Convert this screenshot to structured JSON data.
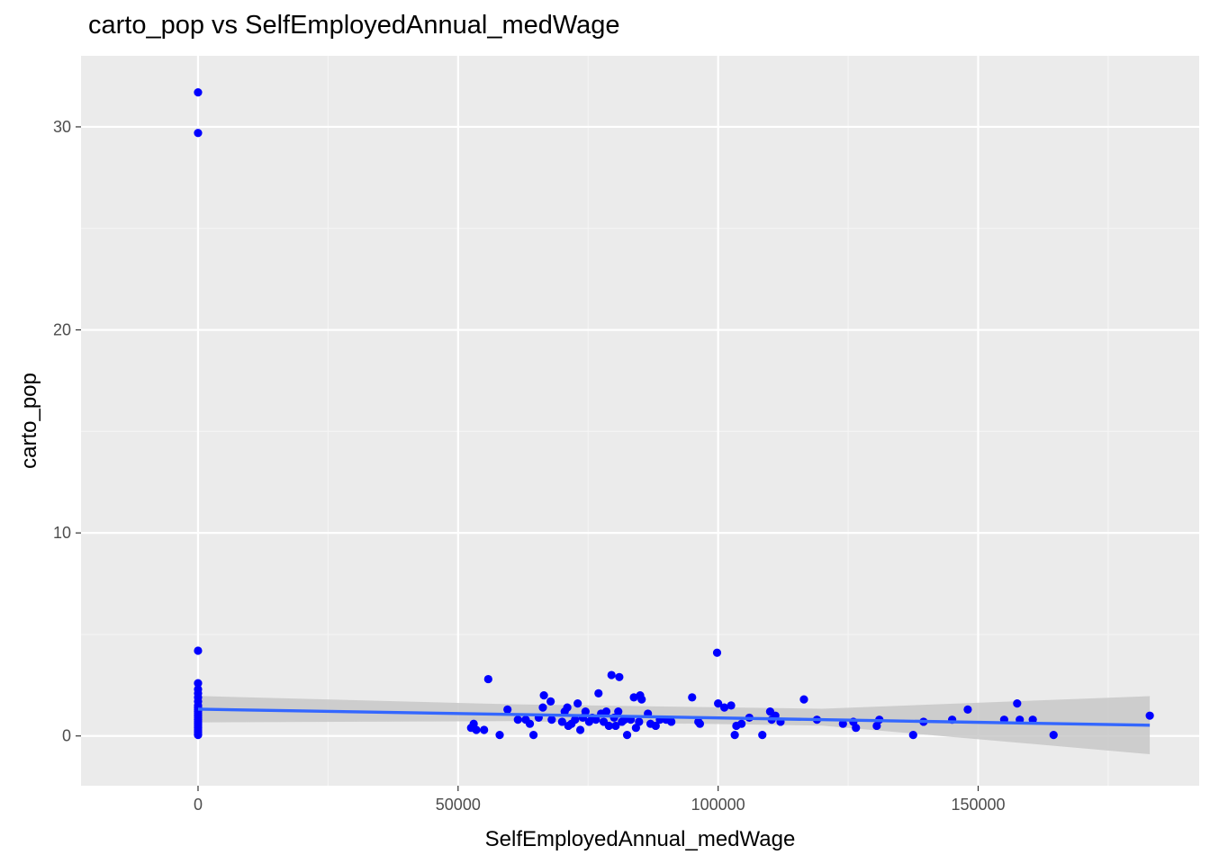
{
  "chart_data": {
    "type": "scatter",
    "title": "carto_pop vs SelfEmployedAnnual_medWage",
    "xlabel": "SelfEmployedAnnual_medWage",
    "ylabel": "carto_pop",
    "xlim": [
      -22500,
      192500
    ],
    "ylim": [
      -2.45,
      33.5
    ],
    "x_ticks": [
      0,
      50000,
      100000,
      150000
    ],
    "x_tick_labels": [
      "0",
      "50000",
      "100000",
      "150000"
    ],
    "y_ticks": [
      0,
      10,
      20,
      30
    ],
    "y_tick_labels": [
      "0",
      "10",
      "20",
      "30"
    ],
    "grid": true,
    "background": "#ebebeb",
    "point_color": "#0000ff",
    "smooth_color": "#3366ff",
    "ribbon_color": "#c8c8c8",
    "points": [
      [
        0,
        31.7
      ],
      [
        0,
        29.7
      ],
      [
        0,
        4.2
      ],
      [
        0,
        2.6
      ],
      [
        0,
        2.3
      ],
      [
        0,
        2.1
      ],
      [
        0,
        1.9
      ],
      [
        0,
        1.7
      ],
      [
        0,
        1.5
      ],
      [
        0,
        1.4
      ],
      [
        0,
        1.3
      ],
      [
        0,
        1.2
      ],
      [
        0,
        1.1
      ],
      [
        0,
        1.0
      ],
      [
        0,
        0.9
      ],
      [
        0,
        0.8
      ],
      [
        0,
        0.7
      ],
      [
        0,
        0.6
      ],
      [
        0,
        0.5
      ],
      [
        0,
        0.4
      ],
      [
        0,
        0.3
      ],
      [
        0,
        0.2
      ],
      [
        0,
        0.1
      ],
      [
        0,
        0.05
      ],
      [
        52500,
        0.4
      ],
      [
        53000,
        0.6
      ],
      [
        53500,
        0.3
      ],
      [
        55000,
        0.3
      ],
      [
        55800,
        2.8
      ],
      [
        58000,
        0.05
      ],
      [
        59500,
        1.3
      ],
      [
        61500,
        0.8
      ],
      [
        63000,
        0.8
      ],
      [
        63800,
        0.6
      ],
      [
        64500,
        0.05
      ],
      [
        65500,
        0.9
      ],
      [
        66300,
        1.4
      ],
      [
        66500,
        2.0
      ],
      [
        67800,
        1.7
      ],
      [
        68000,
        0.8
      ],
      [
        70000,
        0.7
      ],
      [
        70500,
        1.2
      ],
      [
        71000,
        1.4
      ],
      [
        71200,
        0.5
      ],
      [
        71800,
        0.6
      ],
      [
        72500,
        0.8
      ],
      [
        73000,
        1.6
      ],
      [
        73500,
        0.3
      ],
      [
        74000,
        0.9
      ],
      [
        74500,
        1.2
      ],
      [
        75200,
        0.7
      ],
      [
        75800,
        0.9
      ],
      [
        76500,
        0.8
      ],
      [
        77000,
        2.1
      ],
      [
        77500,
        1.1
      ],
      [
        78000,
        0.7
      ],
      [
        78500,
        1.2
      ],
      [
        79000,
        0.5
      ],
      [
        79500,
        3.0
      ],
      [
        80000,
        0.9
      ],
      [
        80300,
        0.5
      ],
      [
        80800,
        1.2
      ],
      [
        81000,
        2.9
      ],
      [
        81500,
        0.7
      ],
      [
        82000,
        0.8
      ],
      [
        82500,
        0.05
      ],
      [
        83200,
        0.8
      ],
      [
        83800,
        1.9
      ],
      [
        84200,
        0.4
      ],
      [
        84800,
        0.7
      ],
      [
        85000,
        2.0
      ],
      [
        85300,
        1.8
      ],
      [
        86500,
        1.1
      ],
      [
        87000,
        0.6
      ],
      [
        88000,
        0.5
      ],
      [
        88800,
        0.8
      ],
      [
        90000,
        0.8
      ],
      [
        91000,
        0.7
      ],
      [
        95000,
        1.9
      ],
      [
        96200,
        0.7
      ],
      [
        96500,
        0.6
      ],
      [
        99800,
        4.1
      ],
      [
        100000,
        1.6
      ],
      [
        101200,
        1.4
      ],
      [
        102500,
        1.5
      ],
      [
        103200,
        0.05
      ],
      [
        103500,
        0.5
      ],
      [
        104500,
        0.6
      ],
      [
        106000,
        0.9
      ],
      [
        108500,
        0.05
      ],
      [
        110000,
        1.2
      ],
      [
        110300,
        0.8
      ],
      [
        111000,
        1.0
      ],
      [
        112000,
        0.7
      ],
      [
        116500,
        1.8
      ],
      [
        119000,
        0.8
      ],
      [
        124000,
        0.6
      ],
      [
        126000,
        0.7
      ],
      [
        126500,
        0.4
      ],
      [
        130500,
        0.5
      ],
      [
        131000,
        0.8
      ],
      [
        137500,
        0.05
      ],
      [
        139500,
        0.7
      ],
      [
        145000,
        0.8
      ],
      [
        148000,
        1.3
      ],
      [
        155000,
        0.8
      ],
      [
        157500,
        1.6
      ],
      [
        158000,
        0.8
      ],
      [
        160500,
        0.8
      ],
      [
        164500,
        0.05
      ],
      [
        183000,
        1.0
      ]
    ],
    "smooth": {
      "x": [
        0,
        183000
      ],
      "y": [
        1.32,
        0.53
      ]
    },
    "ribbon": {
      "x": [
        0,
        60000,
        120000,
        183000
      ],
      "upper": [
        1.97,
        1.56,
        1.34,
        1.96
      ],
      "lower": [
        0.67,
        0.73,
        0.51,
        -0.9
      ]
    }
  }
}
